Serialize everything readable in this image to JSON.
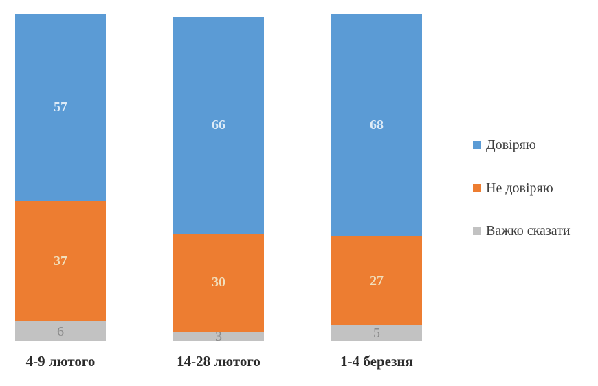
{
  "chart_data": {
    "type": "bar",
    "stacked": true,
    "orientation": "vertical",
    "categories": [
      "4-9 лютого",
      "14-28 лютого",
      "1-4 березня"
    ],
    "series": [
      {
        "name": "Довіряю",
        "color": "#5B9BD5",
        "label_color": "#DEEBF7",
        "values": [
          57,
          66,
          68
        ]
      },
      {
        "name": "Не довіряю",
        "color": "#ED7D31",
        "label_color": "#F1DFBC",
        "values": [
          37,
          30,
          27
        ]
      },
      {
        "name": "Важко сказати",
        "color": "#C2C2C2",
        "label_color": "#8A8A8A",
        "values": [
          6,
          3,
          5
        ]
      }
    ],
    "title": "",
    "xlabel": "",
    "ylabel": "",
    "ylim": [
      0,
      100
    ],
    "grid": false,
    "legend_position": "right",
    "data_labels_shown": true,
    "axis_lines_shown": false
  }
}
